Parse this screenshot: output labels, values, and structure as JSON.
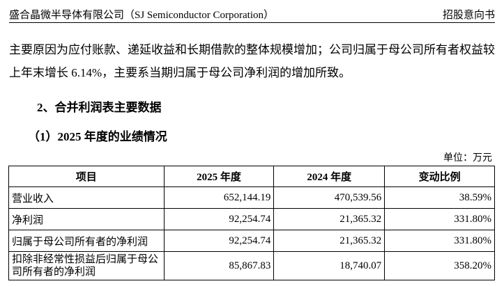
{
  "header": {
    "company": "盛合晶微半导体有限公司（SJ Semiconductor Corporation）",
    "doc_type": "招股意向书"
  },
  "paragraph": "主要原因为应付账款、递延收益和长期借款的整体规模增加；公司归属于母公司所有者权益较上年末增长 6.14%，主要系当期归属于母公司净利润的增加所致。",
  "section_title": "2、合并利润表主要数据",
  "subsection_title": "（1）2025 年度的业绩情况",
  "unit": "单位：万元",
  "table": {
    "columns": [
      "项目",
      "2025 年度",
      "2024 年度",
      "变动比例"
    ],
    "rows": [
      [
        "营业收入",
        "652,144.19",
        "470,539.56",
        "38.59%"
      ],
      [
        "净利润",
        "92,254.74",
        "21,365.32",
        "331.80%"
      ],
      [
        "归属于母公司所有者的净利润",
        "92,254.74",
        "21,365.32",
        "331.80%"
      ],
      [
        "扣除非经常性损益后归属于母公司所有者的净利润",
        "85,867.83",
        "18,740.07",
        "358.20%"
      ]
    ]
  }
}
